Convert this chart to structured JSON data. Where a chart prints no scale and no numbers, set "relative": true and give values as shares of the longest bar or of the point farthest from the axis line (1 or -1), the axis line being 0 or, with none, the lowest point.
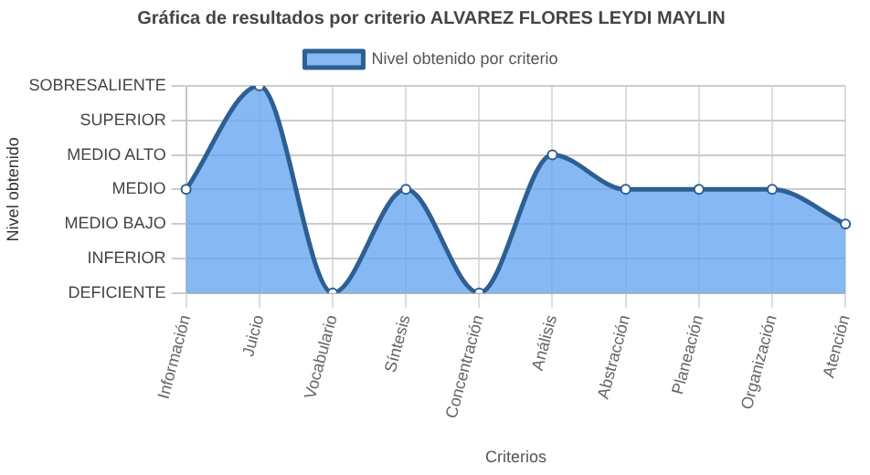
{
  "chart_data": {
    "type": "area",
    "title": "Gráfica de resultados por criterio ALVAREZ FLORES LEYDI MAYLIN",
    "xlabel": "Criterios",
    "categories": [
      "Información",
      "Juicio",
      "Vocabulario",
      "Síntesis",
      "Concentración",
      "Análisis",
      "Abstracción",
      "Planeación",
      "Organización",
      "Atención"
    ],
    "series": [
      {
        "name": "Nivel obtenido por criterio",
        "color": "#2d5f93",
        "values": [
          0.5,
          1,
          0,
          0.5,
          0,
          0.667,
          0.5,
          0.5,
          0.5,
          0.333
        ]
      }
    ],
    "relative": true,
    "annotations": [
      "DEFICIENTE",
      "INFERIOR",
      "MEDIO BAJO",
      "MEDIO",
      "MEDIO ALTO",
      "SUPERIOR",
      "SOBRESALIENTE",
      {
        "text": "Nivel obtenido"
      }
    ],
    "grid": true,
    "legend": "top",
    "marker": "circle",
    "line_style": "solid"
  }
}
